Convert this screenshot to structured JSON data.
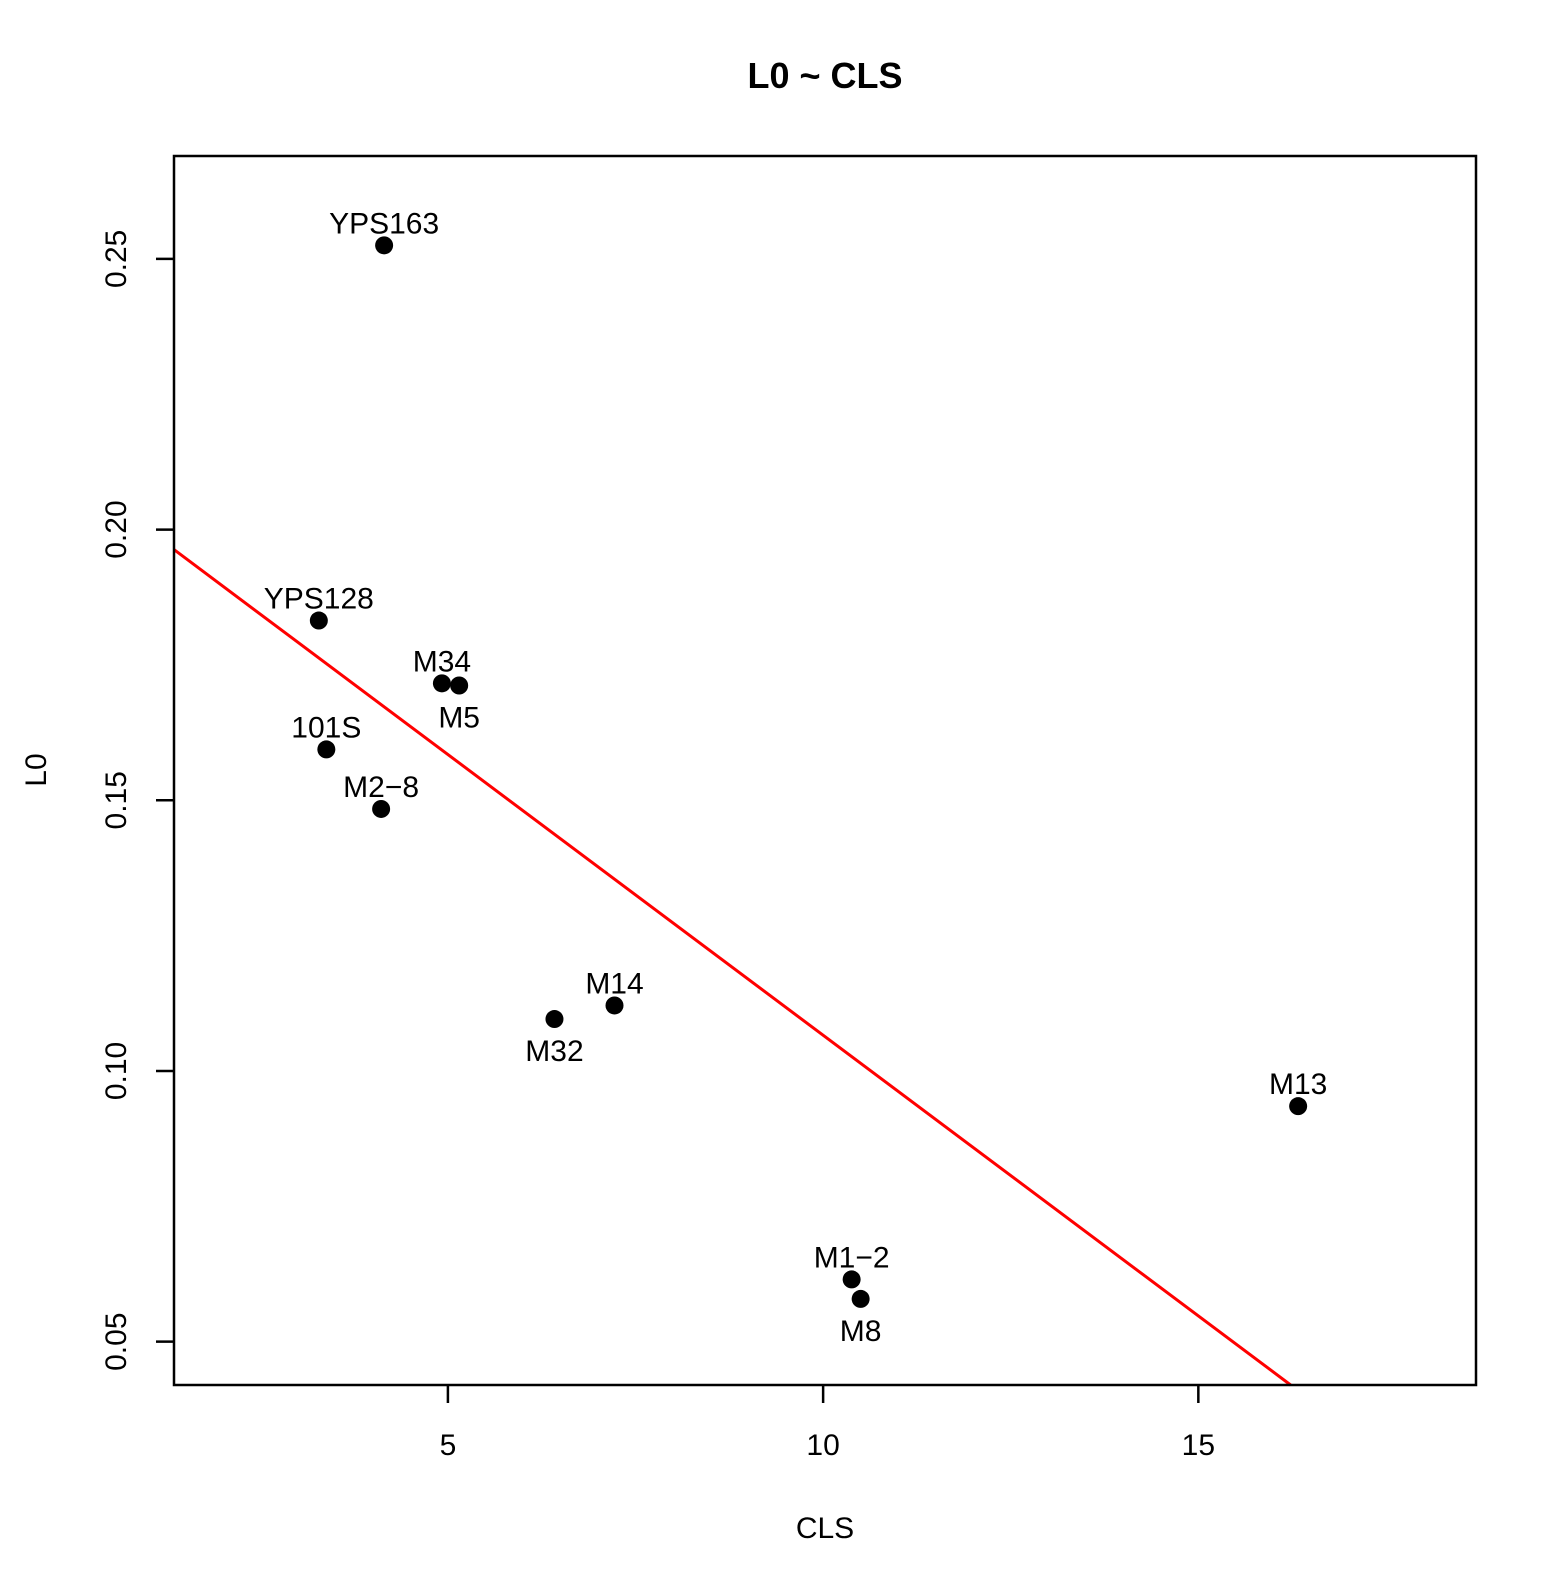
{
  "chart_data": {
    "type": "scatter",
    "title": "L0 ~ CLS",
    "xlabel": "CLS",
    "ylabel": "L0",
    "xlim": [
      1.35,
      18.7
    ],
    "ylim": [
      0.042,
      0.269
    ],
    "xticks": [
      5,
      10,
      15
    ],
    "yticks": [
      0.05,
      0.1,
      0.15,
      0.2,
      0.25
    ],
    "xtick_labels": [
      "5",
      "10",
      "15"
    ],
    "ytick_labels": [
      "0.05",
      "0.10",
      "0.15",
      "0.20",
      "0.25"
    ],
    "grid": false,
    "points": [
      {
        "label": "YPS163",
        "x": 4.15,
        "y": 0.2525,
        "label_pos": "above"
      },
      {
        "label": "YPS128",
        "x": 3.28,
        "y": 0.1832,
        "label_pos": "above"
      },
      {
        "label": "M34",
        "x": 4.92,
        "y": 0.1716,
        "label_pos": "above"
      },
      {
        "label": "M5",
        "x": 5.15,
        "y": 0.1712,
        "label_pos": "below"
      },
      {
        "label": "101S",
        "x": 3.38,
        "y": 0.1594,
        "label_pos": "above"
      },
      {
        "label": "M2−8",
        "x": 4.11,
        "y": 0.1484,
        "label_pos": "above"
      },
      {
        "label": "M14",
        "x": 7.22,
        "y": 0.1121,
        "label_pos": "above"
      },
      {
        "label": "M32",
        "x": 6.42,
        "y": 0.1096,
        "label_pos": "below"
      },
      {
        "label": "M13",
        "x": 16.33,
        "y": 0.0935,
        "label_pos": "above"
      },
      {
        "label": "M1−2",
        "x": 10.38,
        "y": 0.0615,
        "label_pos": "above"
      },
      {
        "label": "M8",
        "x": 10.5,
        "y": 0.0579,
        "label_pos": "below"
      }
    ],
    "fit_line": {
      "x": [
        1.35,
        16.23
      ],
      "y": [
        0.1963,
        0.042
      ]
    },
    "colors": {
      "points": "#000000",
      "fit_line": "#ff0000",
      "frame": "#000000"
    }
  }
}
